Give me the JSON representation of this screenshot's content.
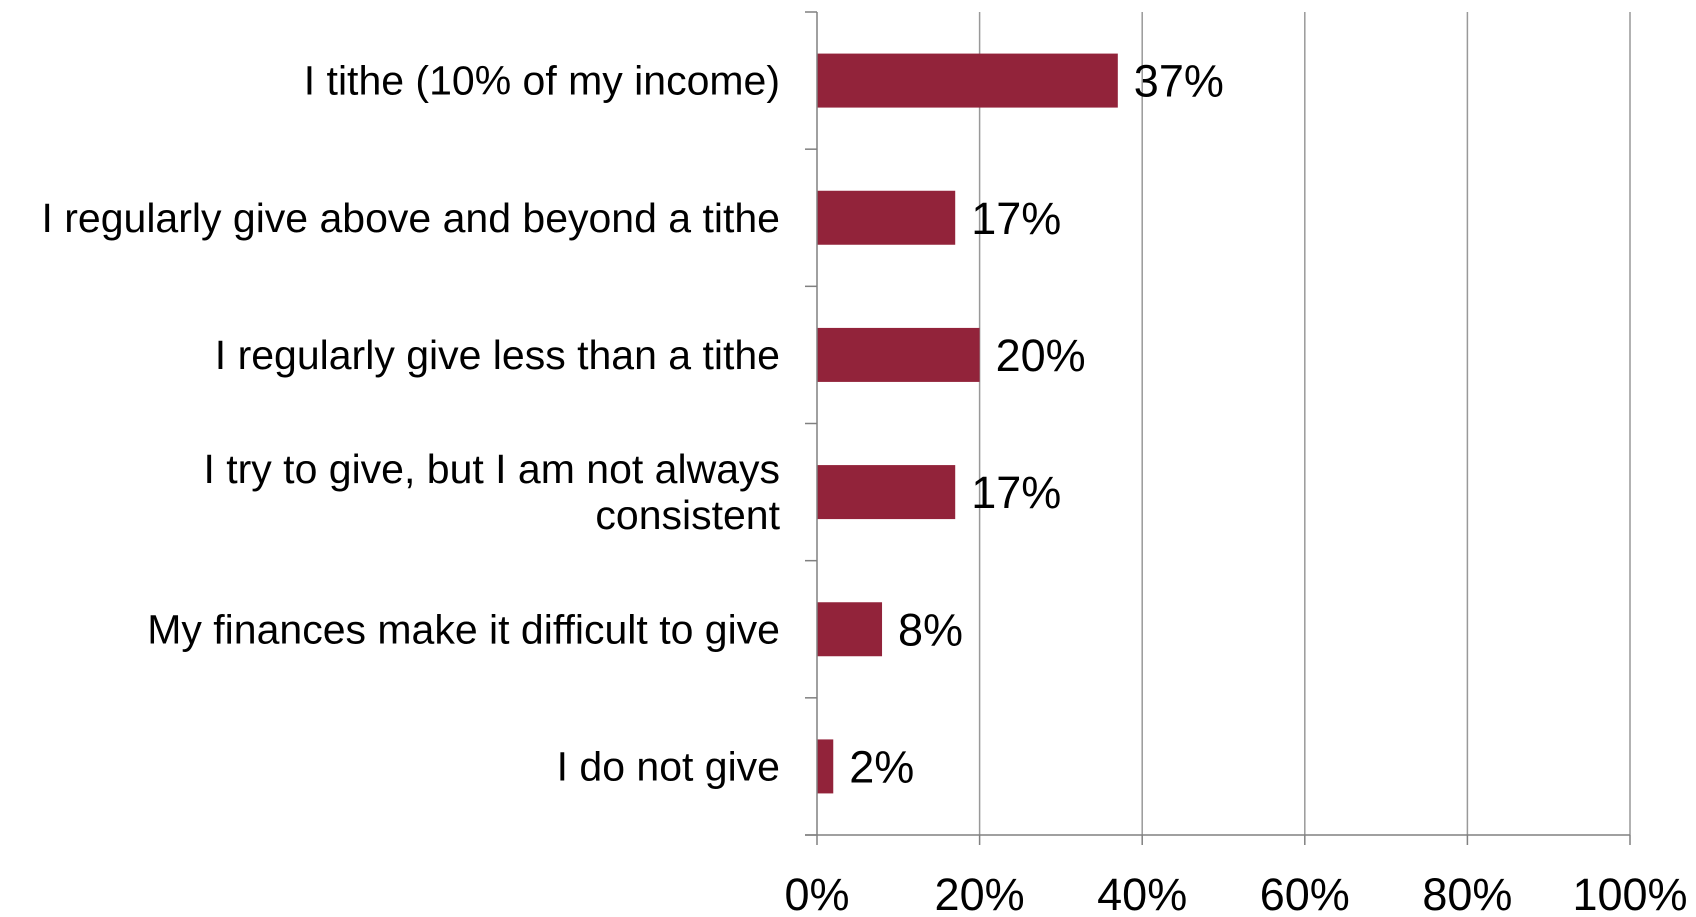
{
  "chart_data": {
    "type": "bar",
    "orientation": "horizontal",
    "categories": [
      [
        "I tithe (10% of my income)"
      ],
      [
        "I regularly give above and beyond a tithe"
      ],
      [
        "I regularly give less than a tithe"
      ],
      [
        "I try to give, but I am not always",
        "consistent"
      ],
      [
        "My finances make it difficult to give"
      ],
      [
        "I do not give"
      ]
    ],
    "values": [
      37,
      17,
      20,
      17,
      8,
      2
    ],
    "value_labels": [
      "37%",
      "17%",
      "20%",
      "17%",
      "8%",
      "2%"
    ],
    "xlim": [
      0,
      100
    ],
    "x_ticks": [
      0,
      20,
      40,
      60,
      80,
      100
    ],
    "x_tick_labels": [
      "0%",
      "20%",
      "40%",
      "60%",
      "80%",
      "100%"
    ],
    "title": "",
    "xlabel": "",
    "ylabel": "",
    "grid": "vertical",
    "legend": "none",
    "bar_color": "#92233A",
    "grid_color": "#999999",
    "axis_color": "#808080"
  }
}
